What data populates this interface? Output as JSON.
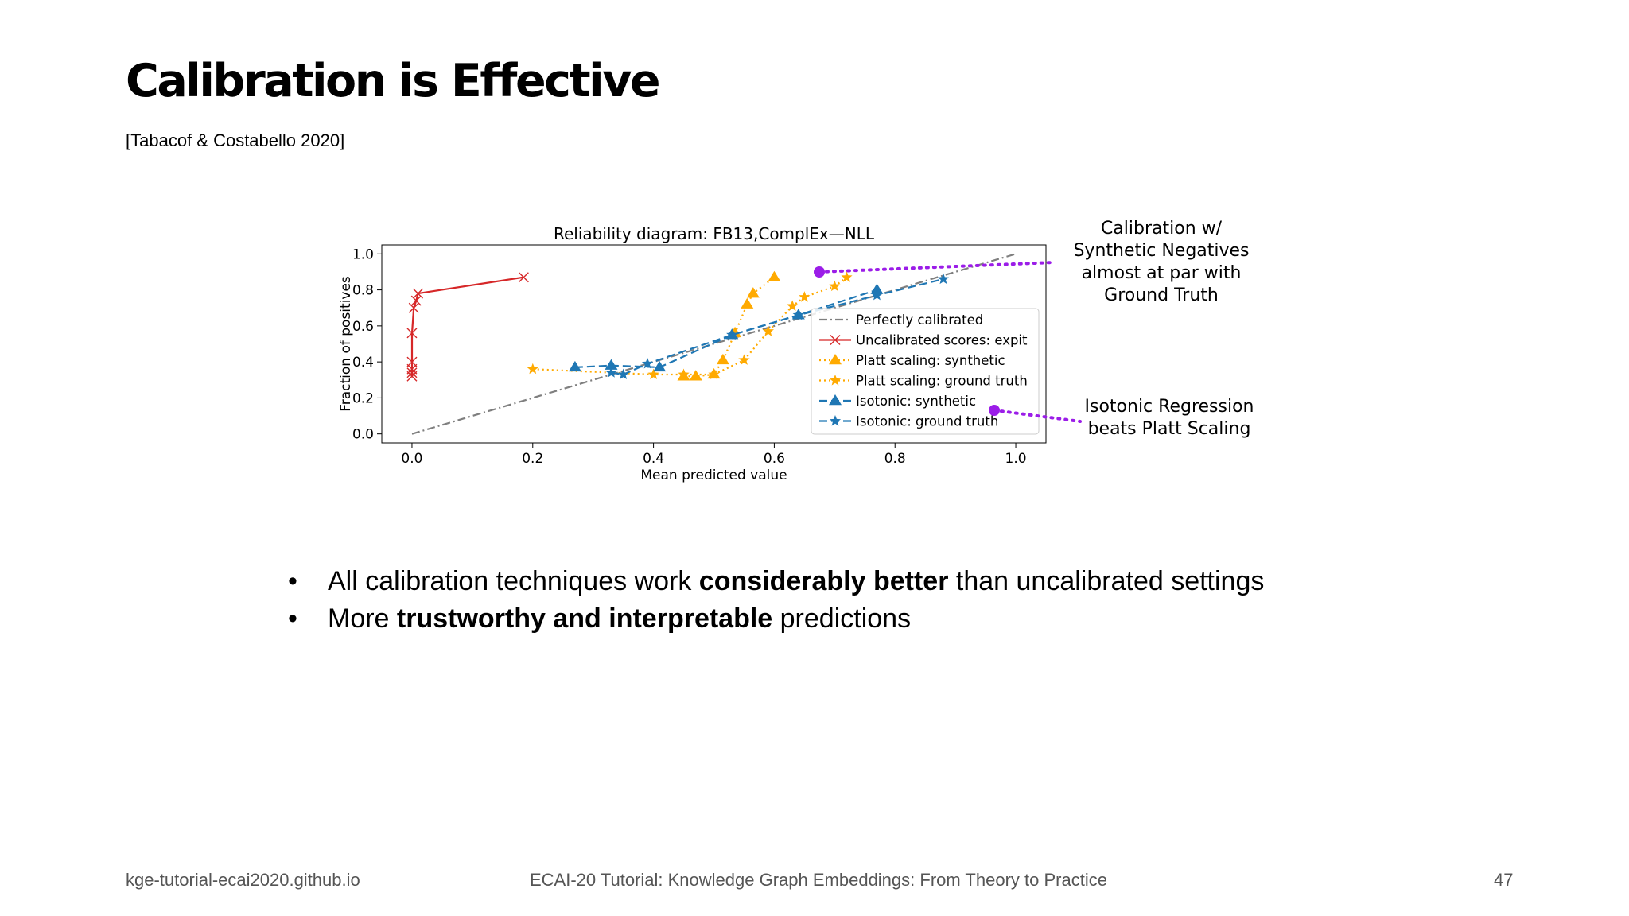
{
  "slide": {
    "title": "Calibration is Effective",
    "citation": "[Tabacof & Costabello 2020]",
    "callouts": {
      "top": [
        "Calibration w/",
        "Synthetic Negatives",
        "almost at par with",
        "Ground Truth"
      ],
      "bottom": [
        "Isotonic Regression",
        "beats Platt Scaling"
      ]
    },
    "callout_color": "#9b1de8",
    "bullets": [
      {
        "before": "All calibration techniques work ",
        "bold": "considerably better",
        "after": " than uncalibrated settings"
      },
      {
        "before": "More ",
        "bold": "trustworthy and interpretable",
        "after": " predictions"
      }
    ],
    "footer": {
      "left": "kge-tutorial-ecai2020.github.io",
      "center": "ECAI-20 Tutorial: Knowledge Graph Embeddings: From Theory to Practice",
      "page": "47"
    }
  },
  "chart_data": {
    "type": "line",
    "title": "Reliability diagram: FB13,ComplEx—NLL",
    "xlabel": "Mean predicted value",
    "ylabel": "Fraction of positives",
    "xlim": [
      -0.05,
      1.05
    ],
    "ylim": [
      -0.05,
      1.05
    ],
    "xticks": [
      "0.0",
      "0.2",
      "0.4",
      "0.6",
      "0.8",
      "1.0"
    ],
    "yticks": [
      "0.0",
      "0.2",
      "0.4",
      "0.6",
      "0.8",
      "1.0"
    ],
    "grid": false,
    "legend_position": "lower-right",
    "series": [
      {
        "name": "Perfectly calibrated",
        "color": "#7f7f7f",
        "style": "dashdot",
        "marker": "none",
        "x": [
          0.0,
          1.0
        ],
        "y": [
          0.0,
          1.0
        ]
      },
      {
        "name": "Uncalibrated scores: expit",
        "color": "#d62728",
        "style": "solid",
        "marker": "x",
        "x": [
          0.0,
          0.0,
          0.0,
          0.0,
          0.0,
          0.003,
          0.007,
          0.01,
          0.185
        ],
        "y": [
          0.32,
          0.34,
          0.36,
          0.4,
          0.56,
          0.7,
          0.74,
          0.78,
          0.87
        ]
      },
      {
        "name": "Platt scaling: synthetic",
        "color": "#ffaa00",
        "style": "dotted",
        "marker": "triangle",
        "x": [
          0.45,
          0.47,
          0.5,
          0.515,
          0.535,
          0.555,
          0.565,
          0.6
        ],
        "y": [
          0.32,
          0.32,
          0.33,
          0.41,
          0.56,
          0.72,
          0.78,
          0.87
        ]
      },
      {
        "name": "Platt scaling: ground truth",
        "color": "#ffaa00",
        "style": "dotted",
        "marker": "star",
        "x": [
          0.2,
          0.4,
          0.45,
          0.5,
          0.55,
          0.59,
          0.63,
          0.65,
          0.7,
          0.72
        ],
        "y": [
          0.36,
          0.33,
          0.33,
          0.33,
          0.41,
          0.57,
          0.71,
          0.76,
          0.82,
          0.87
        ]
      },
      {
        "name": "Isotonic: synthetic",
        "color": "#1f77b4",
        "style": "dashed",
        "marker": "triangle",
        "x": [
          0.27,
          0.33,
          0.41,
          0.53,
          0.64,
          0.77
        ],
        "y": [
          0.37,
          0.38,
          0.37,
          0.55,
          0.66,
          0.8
        ]
      },
      {
        "name": "Isotonic: ground truth",
        "color": "#1f77b4",
        "style": "dashed",
        "marker": "star",
        "x": [
          0.33,
          0.35,
          0.39,
          0.53,
          0.64,
          0.77,
          0.88
        ],
        "y": [
          0.34,
          0.33,
          0.39,
          0.55,
          0.66,
          0.77,
          0.86
        ]
      }
    ]
  }
}
